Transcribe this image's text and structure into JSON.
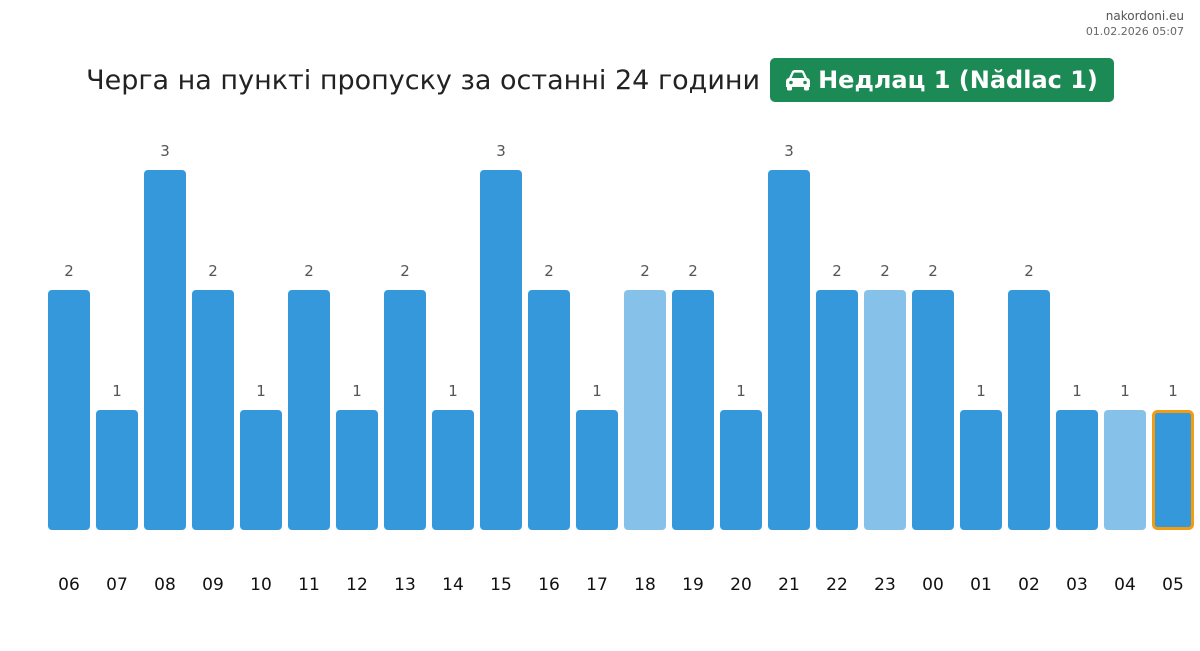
{
  "brand": {
    "site": "nakordoni.eu",
    "timestamp": "01.02.2026 05:07"
  },
  "header": {
    "title": "Черга на пункті пропуску за останні 24 години",
    "checkpoint_icon": "car-icon",
    "checkpoint": "Недлац 1 (Nădlac 1)"
  },
  "colors": {
    "bar": "#3598db",
    "bar_light": "#85c1e9",
    "highlight_border": "#f39c12",
    "badge": "#1c8a55"
  },
  "chart_data": {
    "type": "bar",
    "title": "Черга на пункті пропуску за останні 24 години",
    "categories": [
      "06",
      "07",
      "08",
      "09",
      "10",
      "11",
      "12",
      "13",
      "14",
      "15",
      "16",
      "17",
      "18",
      "19",
      "20",
      "21",
      "22",
      "23",
      "00",
      "01",
      "02",
      "03",
      "04",
      "05"
    ],
    "values": [
      2,
      1,
      3,
      2,
      1,
      2,
      1,
      2,
      1,
      3,
      2,
      1,
      2,
      2,
      1,
      3,
      2,
      2,
      2,
      1,
      2,
      1,
      1,
      1
    ],
    "light_categories": [
      "18",
      "23",
      "04"
    ],
    "highlight_category": "05",
    "data_labels": true,
    "ylim": [
      0,
      3
    ],
    "grid": false,
    "legend": "none"
  }
}
